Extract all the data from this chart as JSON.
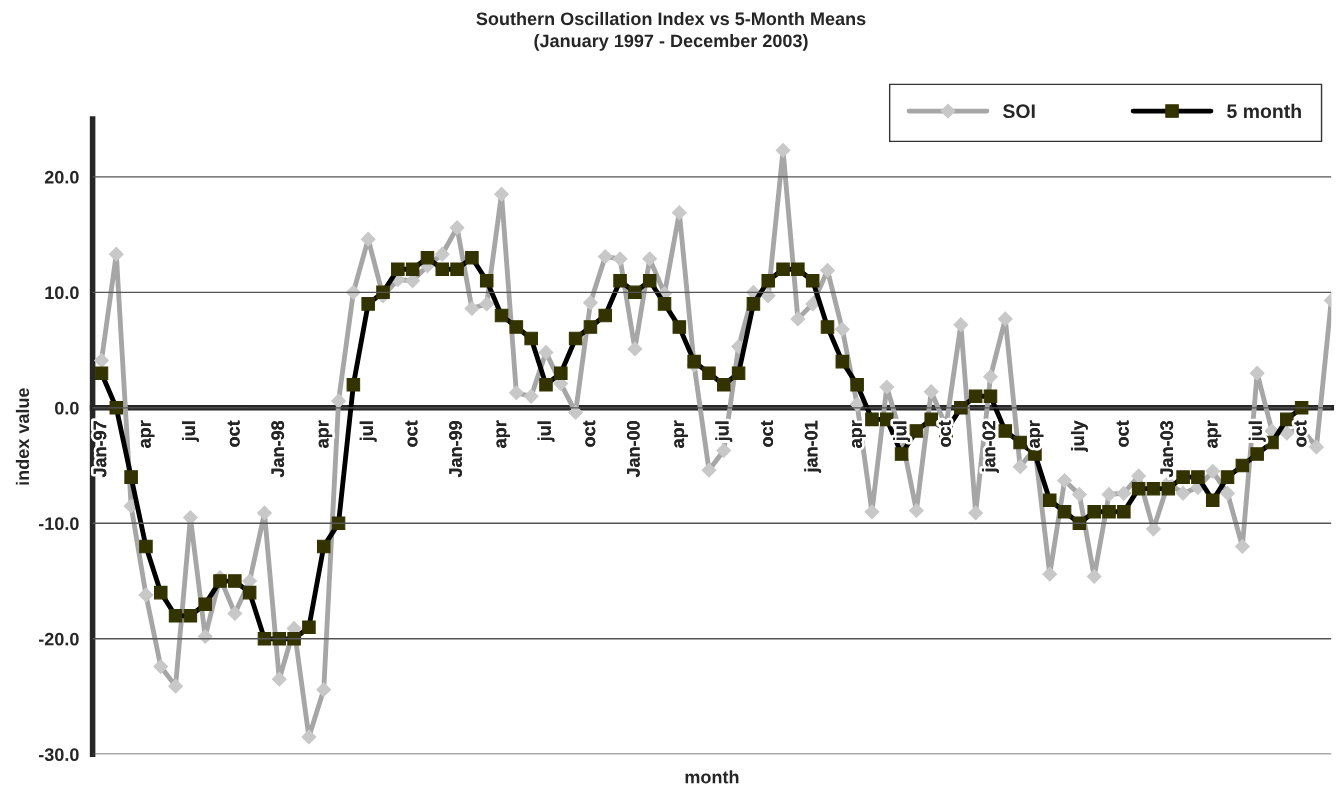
{
  "chart_data": {
    "type": "line",
    "title": "Southern Oscillation Index vs 5-Month Means\n(January 1997 - December 2003)",
    "xlabel": "month",
    "ylabel": "index value",
    "categories": [
      "Jan-97",
      null,
      null,
      "apr",
      null,
      null,
      "jul",
      null,
      null,
      "oct",
      null,
      null,
      "Jan-98",
      null,
      null,
      "apr",
      null,
      null,
      "jul",
      null,
      null,
      "oct",
      null,
      null,
      "Jan-99",
      null,
      null,
      "apr",
      null,
      null,
      "jul",
      null,
      null,
      "oct",
      null,
      null,
      "Jan-00",
      null,
      null,
      "apr",
      null,
      null,
      "jul",
      null,
      null,
      "oct",
      null,
      null,
      "jan-01",
      null,
      null,
      "apr",
      null,
      null,
      "jul",
      null,
      null,
      "oct",
      null,
      null,
      "jan-02",
      null,
      null,
      "apr",
      null,
      null,
      "july",
      null,
      null,
      "oct",
      null,
      null,
      "Jan-03",
      null,
      null,
      "apr",
      null,
      null,
      "jul",
      null,
      null,
      "oct",
      null,
      null
    ],
    "series": [
      {
        "name": "SOI",
        "color": "#a6a6a6",
        "marker": "diamond",
        "values": [
          4.1,
          13.3,
          -8.5,
          -16.2,
          -22.4,
          -24.1,
          -9.5,
          -19.8,
          -14.7,
          -17.8,
          -15.0,
          -9.1,
          -23.5,
          -19.1,
          -28.5,
          -24.4,
          0.6,
          10.0,
          14.6,
          9.7,
          11.1,
          11.0,
          12.3,
          13.3,
          15.6,
          8.6,
          9.0,
          18.5,
          1.3,
          1.0,
          4.8,
          2.1,
          -0.4,
          9.1,
          13.1,
          12.9,
          5.1,
          12.9,
          9.9,
          16.9,
          3.7,
          -5.4,
          -3.7,
          5.3,
          10.0,
          9.7,
          22.3,
          7.7,
          9.0,
          11.9,
          6.8,
          0.3,
          -9.0,
          1.8,
          -2.5,
          -8.9,
          1.4,
          -1.6,
          7.2,
          -9.1,
          2.7,
          7.7,
          -5.1,
          -3.5,
          -14.4,
          -6.3,
          -7.5,
          -14.6,
          -7.5,
          -7.4,
          -5.9,
          -10.5,
          -6.5,
          -7.4,
          -6.9,
          -5.5,
          -7.4,
          -12.0,
          3.0,
          -2.0,
          -2.2,
          -1.8,
          -3.4,
          9.3
        ]
      },
      {
        "name": "5 month",
        "color": "#333300",
        "marker": "square",
        "values": [
          3,
          0,
          -6,
          -12,
          -16,
          -18,
          -18,
          -17,
          -15,
          -15,
          -16,
          -20,
          -20,
          -20,
          -19,
          -12,
          -10,
          2,
          9,
          10,
          12,
          12,
          13,
          12,
          12,
          13,
          11,
          8,
          7,
          6,
          2,
          3,
          6,
          7,
          8,
          11,
          10,
          11,
          9,
          7,
          4,
          3,
          2,
          3,
          9,
          11,
          12,
          12,
          11,
          7,
          4,
          2,
          -1,
          -1,
          -4,
          -2,
          -1,
          -2,
          0,
          1,
          1,
          -2,
          -3,
          -4,
          -8,
          -9,
          -10,
          -9,
          -9,
          -9,
          -7,
          -7,
          -7,
          -6,
          -6,
          -8,
          -6,
          -5,
          -4,
          -3,
          -1,
          0,
          null,
          null
        ]
      }
    ],
    "ylim": [
      -30,
      25
    ],
    "yticks": [
      {
        "value": -30,
        "label": "-30.0"
      },
      {
        "value": -20,
        "label": "-20.0"
      },
      {
        "value": -10,
        "label": "-10.0"
      },
      {
        "value": 0,
        "label": "0.0"
      },
      {
        "value": 10,
        "label": "10.0"
      },
      {
        "value": 20,
        "label": "20.0"
      }
    ],
    "grid": "y",
    "legend": "top right",
    "line_style": "solid"
  }
}
